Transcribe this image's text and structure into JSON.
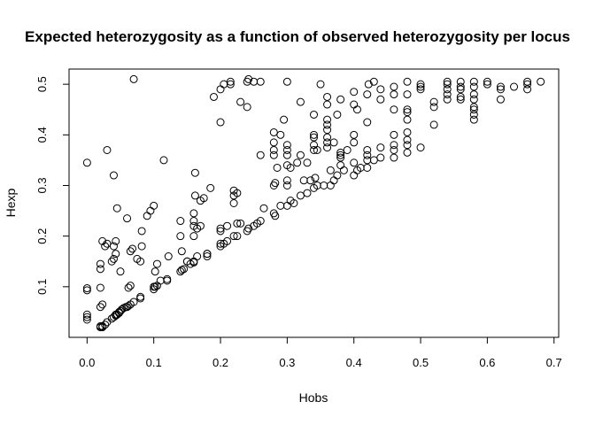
{
  "chart_data": {
    "type": "scatter",
    "title": "Expected heterozygosity as a function of observed heterozygosity per locus",
    "xlabel": "Hobs",
    "ylabel": "Hexp",
    "xlim": [
      -0.027,
      0.707
    ],
    "ylim": [
      0,
      0.53
    ],
    "xticks": [
      0,
      0.1,
      0.2,
      0.3,
      0.4,
      0.5,
      0.6,
      0.7
    ],
    "xtick_labels": [
      "0.0",
      "0.1",
      "0.2",
      "0.3",
      "0.4",
      "0.5",
      "0.6",
      "0.7"
    ],
    "yticks": [
      0.1,
      0.2,
      0.3,
      0.4,
      0.5
    ],
    "ytick_labels": [
      "0.1",
      "0.2",
      "0.3",
      "0.4",
      "0.5"
    ],
    "grid": false,
    "legend": "none",
    "marker": "open-circle",
    "x": [
      0.0,
      0.0,
      0.0,
      0.0,
      0.0,
      0.0,
      0.02,
      0.02,
      0.02,
      0.02,
      0.02,
      0.02,
      0.023,
      0.023,
      0.023,
      0.023,
      0.027,
      0.027,
      0.03,
      0.03,
      0.03,
      0.037,
      0.037,
      0.04,
      0.04,
      0.04,
      0.04,
      0.043,
      0.043,
      0.043,
      0.043,
      0.045,
      0.045,
      0.048,
      0.048,
      0.05,
      0.05,
      0.052,
      0.055,
      0.058,
      0.06,
      0.06,
      0.062,
      0.062,
      0.065,
      0.065,
      0.065,
      0.068,
      0.07,
      0.07,
      0.075,
      0.08,
      0.08,
      0.08,
      0.082,
      0.082,
      0.09,
      0.095,
      0.1,
      0.1,
      0.1,
      0.102,
      0.102,
      0.105,
      0.105,
      0.11,
      0.115,
      0.12,
      0.12,
      0.122,
      0.14,
      0.14,
      0.14,
      0.142,
      0.142,
      0.145,
      0.15,
      0.15,
      0.155,
      0.16,
      0.16,
      0.16,
      0.16,
      0.16,
      0.16,
      0.162,
      0.162,
      0.165,
      0.165,
      0.17,
      0.17,
      0.175,
      0.18,
      0.18,
      0.18,
      0.185,
      0.19,
      0.2,
      0.2,
      0.2,
      0.2,
      0.2,
      0.2,
      0.205,
      0.205,
      0.21,
      0.21,
      0.215,
      0.215,
      0.22,
      0.22,
      0.22,
      0.22,
      0.225,
      0.225,
      0.225,
      0.23,
      0.23,
      0.24,
      0.24,
      0.24,
      0.242,
      0.242,
      0.25,
      0.25,
      0.255,
      0.26,
      0.26,
      0.26,
      0.265,
      0.28,
      0.28,
      0.28,
      0.28,
      0.28,
      0.28,
      0.282,
      0.282,
      0.285,
      0.29,
      0.29,
      0.295,
      0.3,
      0.3,
      0.3,
      0.3,
      0.3,
      0.3,
      0.3,
      0.3,
      0.305,
      0.305,
      0.31,
      0.315,
      0.32,
      0.32,
      0.32,
      0.325,
      0.33,
      0.33,
      0.335,
      0.34,
      0.34,
      0.34,
      0.34,
      0.34,
      0.34,
      0.342,
      0.345,
      0.345,
      0.35,
      0.355,
      0.36,
      0.36,
      0.36,
      0.36,
      0.36,
      0.36,
      0.36,
      0.36,
      0.365,
      0.365,
      0.37,
      0.37,
      0.375,
      0.375,
      0.38,
      0.38,
      0.38,
      0.38,
      0.38,
      0.385,
      0.39,
      0.4,
      0.4,
      0.4,
      0.4,
      0.4,
      0.4,
      0.405,
      0.405,
      0.41,
      0.42,
      0.42,
      0.42,
      0.42,
      0.42,
      0.42,
      0.422,
      0.43,
      0.43,
      0.44,
      0.44,
      0.44,
      0.44,
      0.46,
      0.46,
      0.46,
      0.46,
      0.46,
      0.46,
      0.46,
      0.48,
      0.48,
      0.48,
      0.48,
      0.48,
      0.48,
      0.48,
      0.48,
      0.48,
      0.5,
      0.5,
      0.5,
      0.5,
      0.52,
      0.52,
      0.52,
      0.54,
      0.54,
      0.54,
      0.54,
      0.54,
      0.56,
      0.56,
      0.56,
      0.56,
      0.56,
      0.58,
      0.58,
      0.58,
      0.58,
      0.58,
      0.58,
      0.58,
      0.58,
      0.6,
      0.6,
      0.62,
      0.62,
      0.62,
      0.64,
      0.66,
      0.66,
      0.66,
      0.68
    ],
    "y": [
      0.035,
      0.04,
      0.045,
      0.093,
      0.097,
      0.345,
      0.02,
      0.022,
      0.06,
      0.098,
      0.135,
      0.145,
      0.02,
      0.022,
      0.065,
      0.19,
      0.025,
      0.18,
      0.03,
      0.185,
      0.37,
      0.037,
      0.15,
      0.04,
      0.155,
      0.18,
      0.32,
      0.043,
      0.045,
      0.165,
      0.19,
      0.045,
      0.255,
      0.048,
      0.05,
      0.052,
      0.13,
      0.055,
      0.058,
      0.06,
      0.06,
      0.235,
      0.062,
      0.098,
      0.065,
      0.102,
      0.17,
      0.175,
      0.07,
      0.51,
      0.155,
      0.077,
      0.08,
      0.15,
      0.18,
      0.21,
      0.24,
      0.25,
      0.095,
      0.1,
      0.26,
      0.1,
      0.13,
      0.102,
      0.145,
      0.112,
      0.35,
      0.112,
      0.115,
      0.16,
      0.13,
      0.2,
      0.23,
      0.133,
      0.17,
      0.135,
      0.15,
      0.15,
      0.145,
      0.148,
      0.15,
      0.2,
      0.22,
      0.23,
      0.245,
      0.28,
      0.325,
      0.16,
      0.215,
      0.22,
      0.27,
      0.275,
      0.16,
      0.165,
      0.165,
      0.295,
      0.475,
      0.18,
      0.185,
      0.21,
      0.215,
      0.425,
      0.49,
      0.185,
      0.5,
      0.19,
      0.22,
      0.5,
      0.505,
      0.2,
      0.265,
      0.28,
      0.29,
      0.2,
      0.225,
      0.285,
      0.225,
      0.465,
      0.21,
      0.455,
      0.505,
      0.215,
      0.51,
      0.22,
      0.505,
      0.225,
      0.23,
      0.36,
      0.505,
      0.255,
      0.245,
      0.3,
      0.36,
      0.37,
      0.385,
      0.405,
      0.24,
      0.305,
      0.335,
      0.26,
      0.4,
      0.43,
      0.26,
      0.3,
      0.31,
      0.34,
      0.36,
      0.37,
      0.38,
      0.505,
      0.27,
      0.335,
      0.265,
      0.345,
      0.28,
      0.36,
      0.465,
      0.31,
      0.285,
      0.345,
      0.31,
      0.295,
      0.37,
      0.38,
      0.395,
      0.4,
      0.44,
      0.315,
      0.3,
      0.37,
      0.5,
      0.3,
      0.375,
      0.385,
      0.395,
      0.41,
      0.42,
      0.43,
      0.46,
      0.475,
      0.3,
      0.33,
      0.31,
      0.385,
      0.32,
      0.44,
      0.34,
      0.355,
      0.36,
      0.365,
      0.47,
      0.33,
      0.37,
      0.32,
      0.345,
      0.385,
      0.4,
      0.46,
      0.485,
      0.33,
      0.45,
      0.335,
      0.335,
      0.35,
      0.36,
      0.37,
      0.425,
      0.48,
      0.5,
      0.35,
      0.505,
      0.355,
      0.375,
      0.47,
      0.49,
      0.355,
      0.37,
      0.38,
      0.4,
      0.45,
      0.48,
      0.495,
      0.365,
      0.38,
      0.39,
      0.405,
      0.43,
      0.445,
      0.45,
      0.48,
      0.505,
      0.375,
      0.49,
      0.495,
      0.5,
      0.42,
      0.455,
      0.465,
      0.47,
      0.48,
      0.49,
      0.5,
      0.505,
      0.47,
      0.475,
      0.49,
      0.495,
      0.505,
      0.43,
      0.44,
      0.45,
      0.455,
      0.47,
      0.48,
      0.495,
      0.505,
      0.5,
      0.505,
      0.47,
      0.49,
      0.495,
      0.495,
      0.49,
      0.5,
      0.505,
      0.505
    ]
  }
}
